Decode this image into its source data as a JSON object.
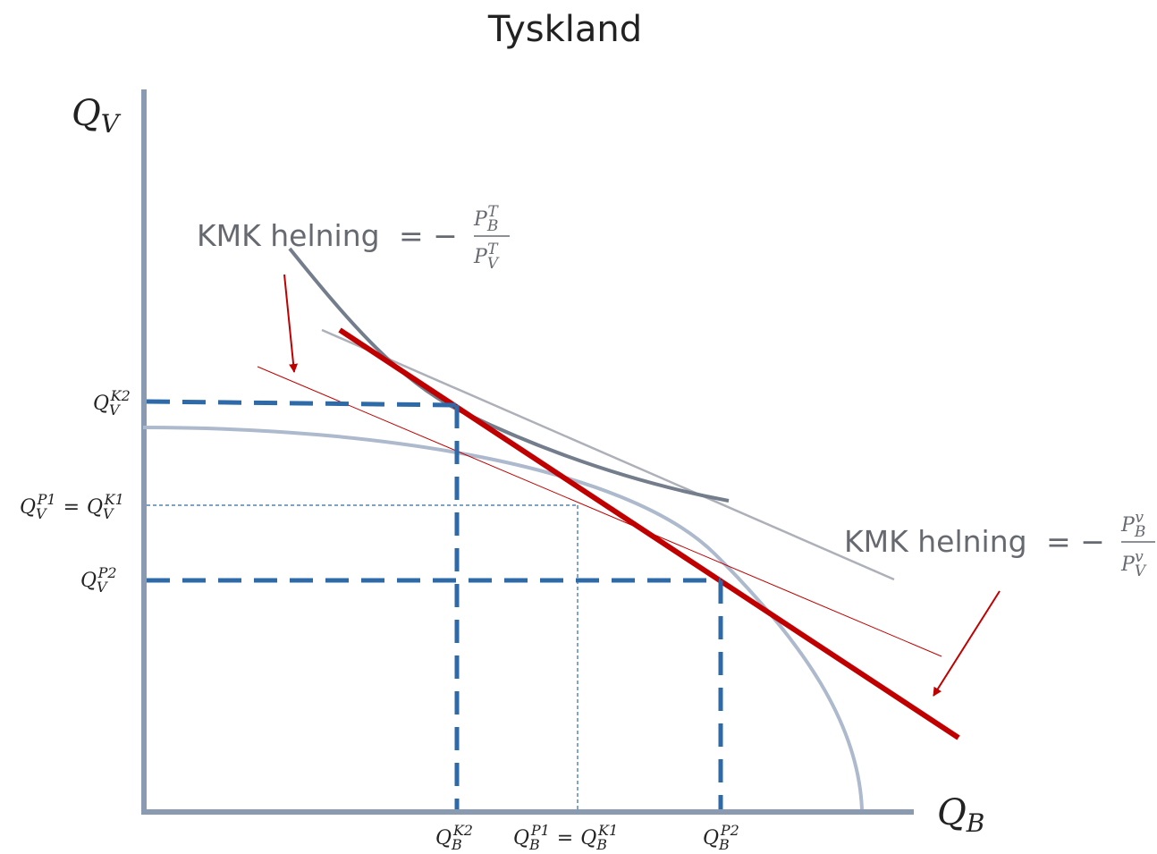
{
  "title": "Tyskland",
  "axes": {
    "y_label": {
      "main": "Q",
      "sub": "V"
    },
    "x_label": {
      "main": "Q",
      "sub": "B"
    }
  },
  "y_ticks": [
    {
      "main": "Q",
      "sub": "V",
      "sup": "K2"
    },
    {
      "main": "Q",
      "sub": "V",
      "sup": "P1",
      "eq": "=",
      "main2": "Q",
      "sub2": "V",
      "sup2": "K1"
    },
    {
      "main": "Q",
      "sub": "V",
      "sup": "P2"
    }
  ],
  "x_ticks": [
    {
      "main": "Q",
      "sub": "B",
      "sup": "K2"
    },
    {
      "main": "Q",
      "sub": "B",
      "sup": "P1",
      "eq": "=",
      "main2": "Q",
      "sub2": "B",
      "sup2": "K1"
    },
    {
      "main": "Q",
      "sub": "B",
      "sup": "P2"
    }
  ],
  "annotations": {
    "autarky": {
      "text": "KMK helning",
      "eq": "= −",
      "num": {
        "main": "P",
        "sub": "B",
        "sup": "T"
      },
      "den": {
        "main": "P",
        "sub": "V",
        "sup": "T"
      }
    },
    "world": {
      "text": "KMK helning",
      "eq": "= −",
      "num": {
        "main": "P",
        "sub": "B",
        "sup": "v"
      },
      "den": {
        "main": "P",
        "sub": "V",
        "sup": "v"
      }
    }
  },
  "colors": {
    "axis": "#8a9ab0",
    "ppf": "#adb9cc",
    "indifference": "#737d8c",
    "autarky_price_line": "#adb0b8",
    "world_price_line": "#c00000",
    "dashed_guides": "#2e6aa8",
    "arrow": "#c00000"
  }
}
